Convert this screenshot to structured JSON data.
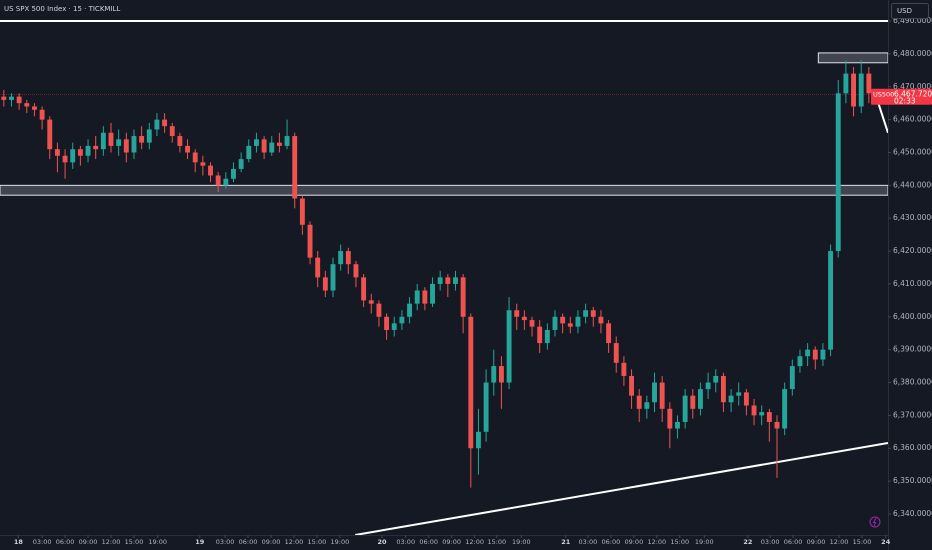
{
  "chart_data": {
    "type": "candlestick",
    "title": "US SPX 500 Index · 15 · TICKMILL",
    "currency": "USD",
    "up_color": "#26a69a",
    "down_color": "#ef5350",
    "open": [
      6467,
      6466,
      6467,
      6465,
      6464,
      6463,
      6460,
      6451,
      6449,
      6447,
      6451,
      6449,
      6452,
      6451,
      6456,
      6452,
      6454,
      6450,
      6455,
      6453,
      6457,
      6460,
      6458,
      6455,
      6452,
      6450,
      6447,
      6446,
      6443,
      6440,
      6442,
      6445,
      6448,
      6452,
      6454,
      6450,
      6453,
      6452,
      6455,
      6436,
      6428,
      6418,
      6412,
      6408,
      6416,
      6420,
      6416,
      6412,
      6405,
      6404,
      6400,
      6396,
      6398,
      6400,
      6404,
      6408,
      6404,
      6410,
      6412,
      6410,
      6412,
      6400,
      6360,
      6365,
      6380,
      6385,
      6380,
      6402,
      6400,
      6399,
      6397,
      6392,
      6396,
      6400,
      6398,
      6397,
      6400,
      6402,
      6400,
      6398,
      6392,
      6386,
      6382,
      6376,
      6372,
      6374,
      6380,
      6372,
      6366,
      6368,
      6376,
      6372,
      6378,
      6380,
      6382,
      6374,
      6376,
      6377,
      6373,
      6370,
      6371,
      6368,
      6366,
      6378,
      6385,
      6388,
      6390,
      6387,
      6390,
      6420,
      6468,
      6474,
      6464,
      6474
    ],
    "high": [
      6469,
      6468,
      6468,
      6466,
      6465,
      6464,
      6461,
      6453,
      6451,
      6453,
      6452,
      6454,
      6455,
      6458,
      6459,
      6457,
      6456,
      6457,
      6458,
      6459,
      6462,
      6462,
      6459,
      6456,
      6454,
      6451,
      6449,
      6447,
      6444,
      6444,
      6447,
      6450,
      6454,
      6456,
      6455,
      6455,
      6456,
      6460,
      6456,
      6437,
      6429,
      6420,
      6414,
      6418,
      6422,
      6421,
      6417,
      6413,
      6407,
      6405,
      6401,
      6400,
      6402,
      6406,
      6410,
      6409,
      6412,
      6414,
      6413,
      6414,
      6413,
      6401,
      6372,
      6384,
      6390,
      6388,
      6406,
      6404,
      6402,
      6400,
      6399,
      6398,
      6402,
      6401,
      6400,
      6402,
      6404,
      6403,
      6402,
      6399,
      6394,
      6388,
      6384,
      6378,
      6376,
      6383,
      6382,
      6374,
      6370,
      6378,
      6378,
      6380,
      6383,
      6384,
      6383,
      6378,
      6380,
      6378,
      6375,
      6373,
      6372,
      6370,
      6380,
      6387,
      6390,
      6392,
      6391,
      6392,
      6422,
      6472,
      6478,
      6476,
      6478,
      6476
    ],
    "low": [
      6464,
      6464,
      6463,
      6462,
      6461,
      6457,
      6448,
      6444,
      6442,
      6445,
      6446,
      6447,
      6448,
      6449,
      6450,
      6449,
      6447,
      6448,
      6451,
      6451,
      6455,
      6456,
      6453,
      6450,
      6448,
      6444,
      6443,
      6441,
      6438,
      6439,
      6441,
      6444,
      6447,
      6450,
      6448,
      6449,
      6450,
      6451,
      6433,
      6425,
      6416,
      6409,
      6406,
      6406,
      6414,
      6413,
      6409,
      6403,
      6401,
      6397,
      6393,
      6394,
      6396,
      6398,
      6402,
      6402,
      6403,
      6408,
      6406,
      6408,
      6395,
      6348,
      6352,
      6362,
      6376,
      6372,
      6378,
      6396,
      6396,
      6394,
      6389,
      6390,
      6394,
      6395,
      6395,
      6395,
      6398,
      6397,
      6395,
      6389,
      6383,
      6379,
      6372,
      6368,
      6369,
      6371,
      6368,
      6360,
      6363,
      6366,
      6369,
      6370,
      6375,
      6377,
      6371,
      6371,
      6373,
      6370,
      6367,
      6367,
      6362,
      6351,
      6364,
      6376,
      6383,
      6385,
      6384,
      6385,
      6388,
      6418,
      6465,
      6461,
      6462,
      6465
    ],
    "close": [
      6466,
      6467,
      6465,
      6464,
      6463,
      6460,
      6451,
      6449,
      6447,
      6451,
      6449,
      6452,
      6451,
      6456,
      6452,
      6454,
      6450,
      6455,
      6453,
      6457,
      6460,
      6458,
      6455,
      6452,
      6450,
      6447,
      6446,
      6443,
      6440,
      6442,
      6445,
      6448,
      6452,
      6454,
      6450,
      6453,
      6452,
      6455,
      6436,
      6428,
      6418,
      6412,
      6408,
      6416,
      6420,
      6416,
      6412,
      6405,
      6404,
      6400,
      6396,
      6398,
      6400,
      6404,
      6408,
      6404,
      6410,
      6412,
      6410,
      6412,
      6400,
      6360,
      6365,
      6380,
      6385,
      6380,
      6402,
      6400,
      6399,
      6397,
      6392,
      6396,
      6400,
      6398,
      6397,
      6400,
      6402,
      6400,
      6398,
      6392,
      6386,
      6382,
      6376,
      6372,
      6374,
      6380,
      6372,
      6366,
      6368,
      6376,
      6372,
      6378,
      6380,
      6382,
      6374,
      6376,
      6377,
      6373,
      6370,
      6371,
      6368,
      6366,
      6378,
      6385,
      6388,
      6390,
      6387,
      6390,
      6420,
      6468,
      6474,
      6464,
      6474,
      6468
    ],
    "xlim": [
      0,
      116
    ],
    "ylim": [
      6333.6,
      6496.4
    ],
    "xticks": [
      {
        "value": 2.4,
        "label": "18"
      },
      {
        "value": 5.5,
        "label": "03:00"
      },
      {
        "value": 8.5,
        "label": "06:00"
      },
      {
        "value": 11.5,
        "label": "09:00"
      },
      {
        "value": 14.5,
        "label": "12:00"
      },
      {
        "value": 17.5,
        "label": "15:00"
      },
      {
        "value": 20.6,
        "label": "19:00"
      },
      {
        "value": 26.1,
        "label": "19"
      },
      {
        "value": 29.4,
        "label": "03:00"
      },
      {
        "value": 32.4,
        "label": "06:00"
      },
      {
        "value": 35.4,
        "label": "09:00"
      },
      {
        "value": 38.4,
        "label": "12:00"
      },
      {
        "value": 41.4,
        "label": "15:00"
      },
      {
        "value": 44.4,
        "label": "19:00"
      },
      {
        "value": 49.9,
        "label": "20"
      },
      {
        "value": 53,
        "label": "03:00"
      },
      {
        "value": 56,
        "label": "06:00"
      },
      {
        "value": 59,
        "label": "09:00"
      },
      {
        "value": 62,
        "label": "12:00"
      },
      {
        "value": 64.9,
        "label": "15:00"
      },
      {
        "value": 68.1,
        "label": "19:00"
      },
      {
        "value": 73.9,
        "label": "21"
      },
      {
        "value": 76.8,
        "label": "03:00"
      },
      {
        "value": 79.8,
        "label": "06:00"
      },
      {
        "value": 82.8,
        "label": "09:00"
      },
      {
        "value": 85.8,
        "label": "12:00"
      },
      {
        "value": 88.8,
        "label": "15:00"
      },
      {
        "value": 92,
        "label": "19:00"
      },
      {
        "value": 97.7,
        "label": "22"
      },
      {
        "value": 100.6,
        "label": "03:00"
      },
      {
        "value": 103.6,
        "label": "06:00"
      },
      {
        "value": 106.6,
        "label": "09:00"
      },
      {
        "value": 109.6,
        "label": "12:00"
      },
      {
        "value": 112.6,
        "label": "15:00"
      },
      {
        "value": 115.7,
        "label": "24"
      }
    ],
    "yticks": [
      {
        "value": 6340,
        "label": "6,340.00000"
      },
      {
        "value": 6350,
        "label": "6,350.00000"
      },
      {
        "value": 6360,
        "label": "6,360.00000"
      },
      {
        "value": 6370,
        "label": "6,370.00000"
      },
      {
        "value": 6380,
        "label": "6,380.00000"
      },
      {
        "value": 6390,
        "label": "6,390.00000"
      },
      {
        "value": 6400,
        "label": "6,400.00000"
      },
      {
        "value": 6410,
        "label": "6,410.00000"
      },
      {
        "value": 6420,
        "label": "6,420.00000"
      },
      {
        "value": 6430,
        "label": "6,430.00000"
      },
      {
        "value": 6440,
        "label": "6,440.00000"
      },
      {
        "value": 6450,
        "label": "6,450.00000"
      },
      {
        "value": 6460,
        "label": "6,460.00000"
      },
      {
        "value": 6470,
        "label": "6,470.00000"
      },
      {
        "value": 6480,
        "label": "6,480.00000"
      },
      {
        "value": 6490,
        "label": "6,490.00000"
      }
    ],
    "last_price": {
      "value": 6467.72,
      "label": "6,467.72000",
      "symbol": "US500",
      "countdown": "02:33",
      "color": "#f23645"
    },
    "drawings": {
      "levels": [
        {
          "value": 6490,
          "color": "#ffffff"
        }
      ],
      "zones": [
        {
          "x": [
            0,
            116
          ],
          "y": [
            6437,
            6440
          ]
        },
        {
          "x": [
            106.9,
            116
          ],
          "y": [
            6477.3,
            6480.3
          ]
        }
      ],
      "lines": [
        {
          "x": [
            46.4,
            116
          ],
          "y": [
            6333.6,
            6361.6
          ]
        },
        {
          "x": [
            114.6,
            116
          ],
          "y": [
            6466,
            6456
          ]
        }
      ]
    }
  }
}
